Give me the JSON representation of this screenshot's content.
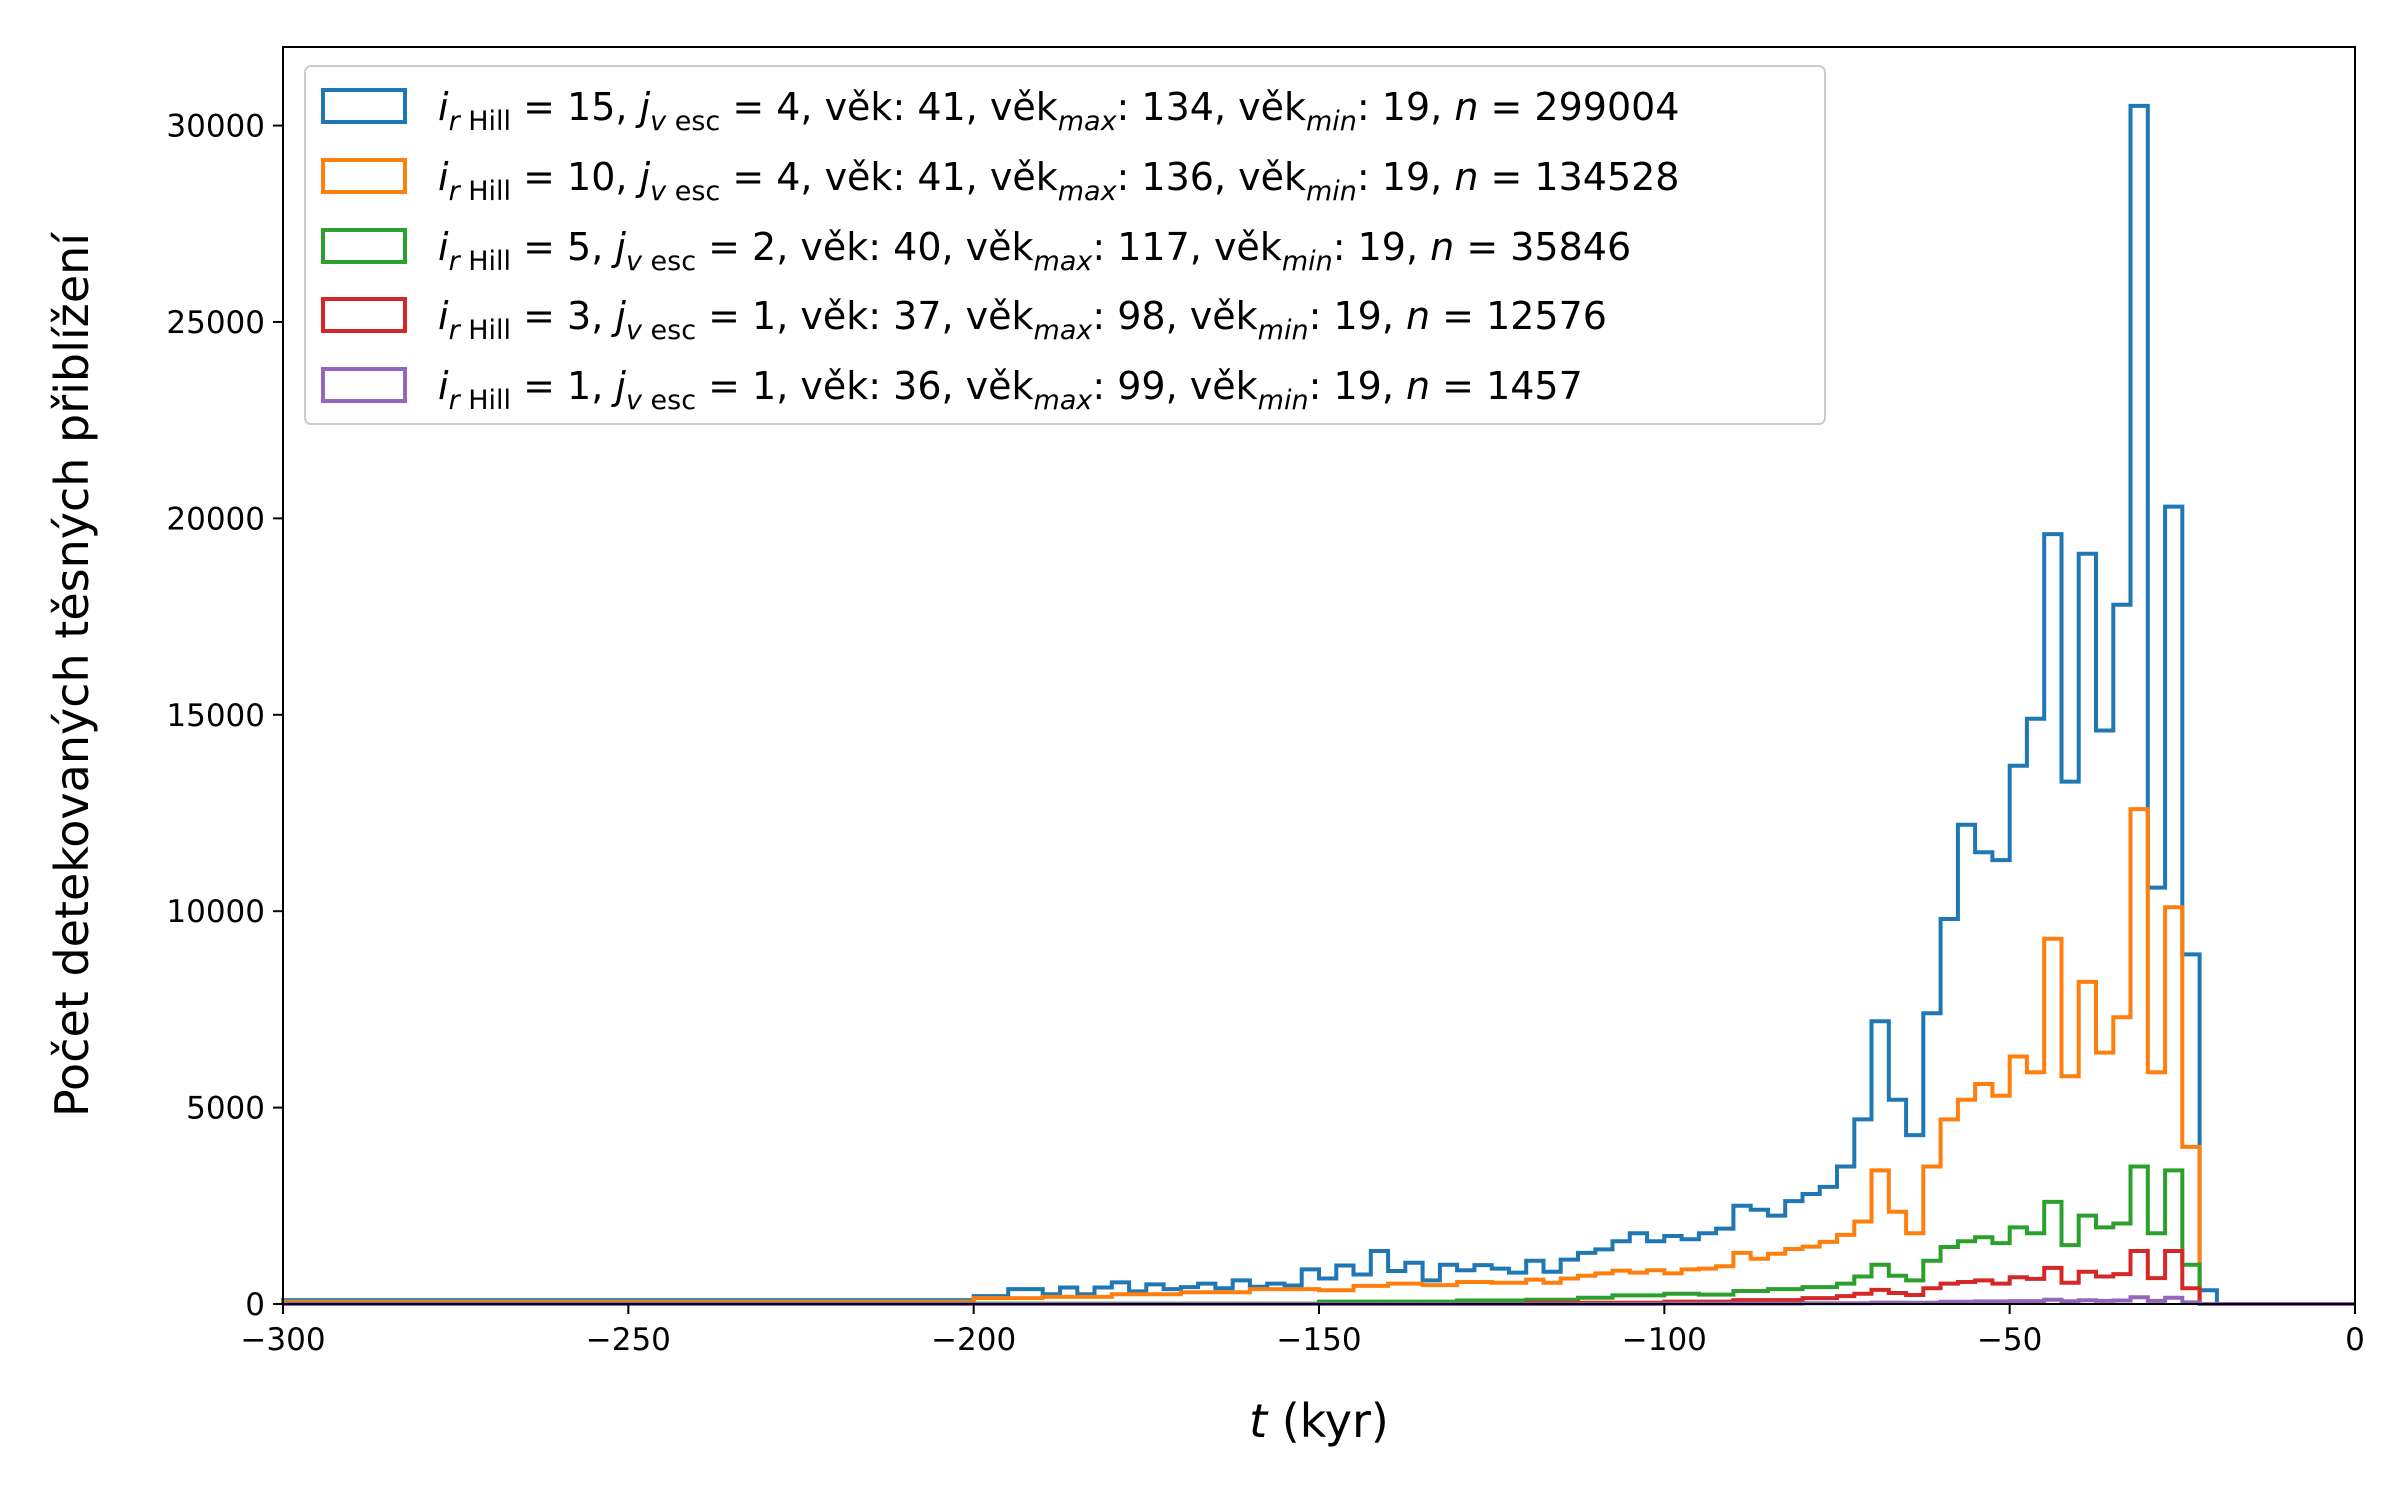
{
  "chart_data": {
    "type": "histogram-step",
    "xlabel": {
      "var": "t",
      "unit": " (kyr)"
    },
    "ylabel": "Počet detekovaných těsných přiblížení",
    "xlim": [
      -300,
      0
    ],
    "ylim": [
      0,
      32000
    ],
    "xticks": [
      -300,
      -250,
      -200,
      -150,
      -100,
      -50,
      0
    ],
    "xtick_labels": [
      "−300",
      "−250",
      "−200",
      "−150",
      "−100",
      "−50",
      "0"
    ],
    "yticks": [
      0,
      5000,
      10000,
      15000,
      20000,
      25000,
      30000
    ],
    "ytick_labels": [
      "0",
      "5000",
      "10000",
      "15000",
      "20000",
      "25000",
      "30000"
    ],
    "bin_width": 2.5,
    "legend": {
      "position": "upper-left"
    },
    "series": [
      {
        "label_r": "15",
        "label_j": "4",
        "vek": "41",
        "vek_max": "134",
        "vek_min": "19",
        "n": "299004",
        "color": "#1f77b4",
        "bins": [
          {
            "x": -300,
            "y": 100
          },
          {
            "x": -200,
            "y": 200
          },
          {
            "x": -195,
            "y": 380
          },
          {
            "x": -190,
            "y": 250
          },
          {
            "x": -187.5,
            "y": 420
          },
          {
            "x": -185,
            "y": 250
          },
          {
            "x": -182.5,
            "y": 420
          },
          {
            "x": -180,
            "y": 550
          },
          {
            "x": -177.5,
            "y": 320
          },
          {
            "x": -175,
            "y": 500
          },
          {
            "x": -172.5,
            "y": 380
          },
          {
            "x": -170,
            "y": 430
          },
          {
            "x": -167.5,
            "y": 520
          },
          {
            "x": -165,
            "y": 400
          },
          {
            "x": -162.5,
            "y": 600
          },
          {
            "x": -160,
            "y": 440
          },
          {
            "x": -157.5,
            "y": 520
          },
          {
            "x": -155,
            "y": 470
          },
          {
            "x": -152.5,
            "y": 880
          },
          {
            "x": -150,
            "y": 650
          },
          {
            "x": -147.5,
            "y": 980
          },
          {
            "x": -145,
            "y": 750
          },
          {
            "x": -142.5,
            "y": 1350
          },
          {
            "x": -140,
            "y": 840
          },
          {
            "x": -137.5,
            "y": 1050
          },
          {
            "x": -135,
            "y": 600
          },
          {
            "x": -132.5,
            "y": 1000
          },
          {
            "x": -130,
            "y": 860
          },
          {
            "x": -127.5,
            "y": 990
          },
          {
            "x": -125,
            "y": 900
          },
          {
            "x": -122.5,
            "y": 800
          },
          {
            "x": -120,
            "y": 1100
          },
          {
            "x": -117.5,
            "y": 820
          },
          {
            "x": -115,
            "y": 1130
          },
          {
            "x": -112.5,
            "y": 1300
          },
          {
            "x": -110,
            "y": 1390
          },
          {
            "x": -107.5,
            "y": 1600
          },
          {
            "x": -105,
            "y": 1800
          },
          {
            "x": -102.5,
            "y": 1600
          },
          {
            "x": -100,
            "y": 1730
          },
          {
            "x": -97.5,
            "y": 1650
          },
          {
            "x": -95,
            "y": 1800
          },
          {
            "x": -92.5,
            "y": 1920
          },
          {
            "x": -90,
            "y": 2500
          },
          {
            "x": -87.5,
            "y": 2400
          },
          {
            "x": -85,
            "y": 2250
          },
          {
            "x": -82.5,
            "y": 2620
          },
          {
            "x": -80,
            "y": 2800
          },
          {
            "x": -77.5,
            "y": 2980
          },
          {
            "x": -75,
            "y": 3500
          },
          {
            "x": -72.5,
            "y": 4700
          },
          {
            "x": -70,
            "y": 7200
          },
          {
            "x": -67.5,
            "y": 5200
          },
          {
            "x": -65,
            "y": 4300
          },
          {
            "x": -62.5,
            "y": 7400
          },
          {
            "x": -60,
            "y": 9800
          },
          {
            "x": -57.5,
            "y": 12200
          },
          {
            "x": -55,
            "y": 11500
          },
          {
            "x": -52.5,
            "y": 11300
          },
          {
            "x": -50,
            "y": 13700
          },
          {
            "x": -47.5,
            "y": 14900
          },
          {
            "x": -45,
            "y": 19600
          },
          {
            "x": -42.5,
            "y": 13300
          },
          {
            "x": -40,
            "y": 19100
          },
          {
            "x": -37.5,
            "y": 14600
          },
          {
            "x": -35,
            "y": 17800
          },
          {
            "x": -32.5,
            "y": 30500
          },
          {
            "x": -30,
            "y": 10600
          },
          {
            "x": -27.5,
            "y": 20300
          },
          {
            "x": -25,
            "y": 8900
          },
          {
            "x": -22.5,
            "y": 350
          },
          {
            "x": -20,
            "y": 0
          }
        ]
      },
      {
        "label_r": "10",
        "label_j": "4",
        "vek": "41",
        "vek_max": "136",
        "vek_min": "19",
        "n": "134528",
        "color": "#ff7f0e",
        "bins": [
          {
            "x": -300,
            "y": 60
          },
          {
            "x": -200,
            "y": 150
          },
          {
            "x": -190,
            "y": 180
          },
          {
            "x": -180,
            "y": 250
          },
          {
            "x": -170,
            "y": 300
          },
          {
            "x": -160,
            "y": 380
          },
          {
            "x": -150,
            "y": 350
          },
          {
            "x": -145,
            "y": 460
          },
          {
            "x": -140,
            "y": 520
          },
          {
            "x": -135,
            "y": 480
          },
          {
            "x": -130,
            "y": 560
          },
          {
            "x": -125,
            "y": 540
          },
          {
            "x": -120,
            "y": 620
          },
          {
            "x": -117.5,
            "y": 540
          },
          {
            "x": -115,
            "y": 650
          },
          {
            "x": -112.5,
            "y": 720
          },
          {
            "x": -110,
            "y": 780
          },
          {
            "x": -107.5,
            "y": 850
          },
          {
            "x": -105,
            "y": 800
          },
          {
            "x": -102.5,
            "y": 860
          },
          {
            "x": -100,
            "y": 780
          },
          {
            "x": -97.5,
            "y": 880
          },
          {
            "x": -95,
            "y": 900
          },
          {
            "x": -92.5,
            "y": 960
          },
          {
            "x": -90,
            "y": 1300
          },
          {
            "x": -87.5,
            "y": 1150
          },
          {
            "x": -85,
            "y": 1280
          },
          {
            "x": -82.5,
            "y": 1400
          },
          {
            "x": -80,
            "y": 1460
          },
          {
            "x": -77.5,
            "y": 1580
          },
          {
            "x": -75,
            "y": 1760
          },
          {
            "x": -72.5,
            "y": 2100
          },
          {
            "x": -70,
            "y": 3400
          },
          {
            "x": -67.5,
            "y": 2350
          },
          {
            "x": -65,
            "y": 1800
          },
          {
            "x": -62.5,
            "y": 3500
          },
          {
            "x": -60,
            "y": 4700
          },
          {
            "x": -57.5,
            "y": 5200
          },
          {
            "x": -55,
            "y": 5600
          },
          {
            "x": -52.5,
            "y": 5300
          },
          {
            "x": -50,
            "y": 6300
          },
          {
            "x": -47.5,
            "y": 5900
          },
          {
            "x": -45,
            "y": 9300
          },
          {
            "x": -42.5,
            "y": 5800
          },
          {
            "x": -40,
            "y": 8200
          },
          {
            "x": -37.5,
            "y": 6400
          },
          {
            "x": -35,
            "y": 7300
          },
          {
            "x": -32.5,
            "y": 12600
          },
          {
            "x": -30,
            "y": 5900
          },
          {
            "x": -27.5,
            "y": 10100
          },
          {
            "x": -25,
            "y": 4000
          },
          {
            "x": -22.5,
            "y": 0
          }
        ]
      },
      {
        "label_r": "5",
        "label_j": "2",
        "vek": "40",
        "vek_max": "117",
        "vek_min": "19",
        "n": "35846",
        "color": "#2ca02c",
        "bins": [
          {
            "x": -300,
            "y": 10
          },
          {
            "x": -150,
            "y": 60
          },
          {
            "x": -130,
            "y": 90
          },
          {
            "x": -120,
            "y": 110
          },
          {
            "x": -112.5,
            "y": 160
          },
          {
            "x": -107.5,
            "y": 220
          },
          {
            "x": -100,
            "y": 260
          },
          {
            "x": -95,
            "y": 240
          },
          {
            "x": -90,
            "y": 330
          },
          {
            "x": -85,
            "y": 380
          },
          {
            "x": -80,
            "y": 430
          },
          {
            "x": -75,
            "y": 520
          },
          {
            "x": -72.5,
            "y": 700
          },
          {
            "x": -70,
            "y": 1000
          },
          {
            "x": -67.5,
            "y": 720
          },
          {
            "x": -65,
            "y": 600
          },
          {
            "x": -62.5,
            "y": 1100
          },
          {
            "x": -60,
            "y": 1450
          },
          {
            "x": -57.5,
            "y": 1600
          },
          {
            "x": -55,
            "y": 1700
          },
          {
            "x": -52.5,
            "y": 1550
          },
          {
            "x": -50,
            "y": 1950
          },
          {
            "x": -47.5,
            "y": 1800
          },
          {
            "x": -45,
            "y": 2600
          },
          {
            "x": -42.5,
            "y": 1500
          },
          {
            "x": -40,
            "y": 2250
          },
          {
            "x": -37.5,
            "y": 1950
          },
          {
            "x": -35,
            "y": 2050
          },
          {
            "x": -32.5,
            "y": 3500
          },
          {
            "x": -30,
            "y": 1800
          },
          {
            "x": -27.5,
            "y": 3400
          },
          {
            "x": -25,
            "y": 1000
          },
          {
            "x": -22.5,
            "y": 0
          }
        ]
      },
      {
        "label_r": "3",
        "label_j": "1",
        "vek": "37",
        "vek_max": "98",
        "vek_min": "19",
        "n": "12576",
        "color": "#d62728",
        "bins": [
          {
            "x": -300,
            "y": 0
          },
          {
            "x": -120,
            "y": 30
          },
          {
            "x": -100,
            "y": 60
          },
          {
            "x": -90,
            "y": 100
          },
          {
            "x": -80,
            "y": 150
          },
          {
            "x": -75,
            "y": 200
          },
          {
            "x": -72.5,
            "y": 260
          },
          {
            "x": -70,
            "y": 360
          },
          {
            "x": -67.5,
            "y": 280
          },
          {
            "x": -65,
            "y": 230
          },
          {
            "x": -62.5,
            "y": 400
          },
          {
            "x": -60,
            "y": 520
          },
          {
            "x": -57.5,
            "y": 560
          },
          {
            "x": -55,
            "y": 600
          },
          {
            "x": -52.5,
            "y": 520
          },
          {
            "x": -50,
            "y": 680
          },
          {
            "x": -47.5,
            "y": 640
          },
          {
            "x": -45,
            "y": 920
          },
          {
            "x": -42.5,
            "y": 540
          },
          {
            "x": -40,
            "y": 820
          },
          {
            "x": -37.5,
            "y": 700
          },
          {
            "x": -35,
            "y": 760
          },
          {
            "x": -32.5,
            "y": 1350
          },
          {
            "x": -30,
            "y": 660
          },
          {
            "x": -27.5,
            "y": 1350
          },
          {
            "x": -25,
            "y": 400
          },
          {
            "x": -22.5,
            "y": 0
          }
        ]
      },
      {
        "label_r": "1",
        "label_j": "1",
        "vek": "36",
        "vek_max": "99",
        "vek_min": "19",
        "n": "1457",
        "color": "#9467bd",
        "bins": [
          {
            "x": -300,
            "y": 0
          },
          {
            "x": -100,
            "y": 10
          },
          {
            "x": -80,
            "y": 20
          },
          {
            "x": -70,
            "y": 35
          },
          {
            "x": -65,
            "y": 30
          },
          {
            "x": -60,
            "y": 55
          },
          {
            "x": -55,
            "y": 65
          },
          {
            "x": -50,
            "y": 75
          },
          {
            "x": -45,
            "y": 110
          },
          {
            "x": -42.5,
            "y": 70
          },
          {
            "x": -40,
            "y": 95
          },
          {
            "x": -37.5,
            "y": 80
          },
          {
            "x": -35,
            "y": 90
          },
          {
            "x": -32.5,
            "y": 170
          },
          {
            "x": -30,
            "y": 80
          },
          {
            "x": -27.5,
            "y": 160
          },
          {
            "x": -25,
            "y": 40
          },
          {
            "x": -22.5,
            "y": 0
          }
        ]
      }
    ]
  }
}
